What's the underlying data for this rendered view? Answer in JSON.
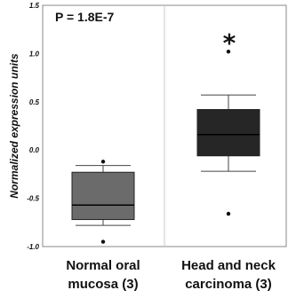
{
  "chart_data": {
    "type": "box",
    "ylabel": "Normalized expression units",
    "ylim": [
      -1.0,
      1.5
    ],
    "yticks": [
      "1.5",
      "1.0",
      "0.5",
      "0.0",
      "-0.5",
      "-1.0"
    ],
    "ytick_values": [
      1.5,
      1.0,
      0.5,
      0.0,
      -0.5,
      -1.0
    ],
    "annotation": {
      "pvalue": "P = 1.8E-7",
      "significance": "*"
    },
    "groups": [
      {
        "label_lines": [
          "Normal oral",
          "mucosa (3)"
        ],
        "whisker_low": -0.78,
        "q1": -0.72,
        "median": -0.57,
        "q3": -0.23,
        "whisker_high": -0.16,
        "outliers": [
          -0.95,
          -0.12
        ],
        "color": "#6b6b6b"
      },
      {
        "label_lines": [
          "Head and neck",
          "carcinoma (3)"
        ],
        "whisker_low": -0.22,
        "q1": -0.06,
        "median": 0.16,
        "q3": 0.42,
        "whisker_high": 0.57,
        "outliers": [
          -0.66,
          1.02
        ],
        "color": "#262626"
      }
    ]
  }
}
